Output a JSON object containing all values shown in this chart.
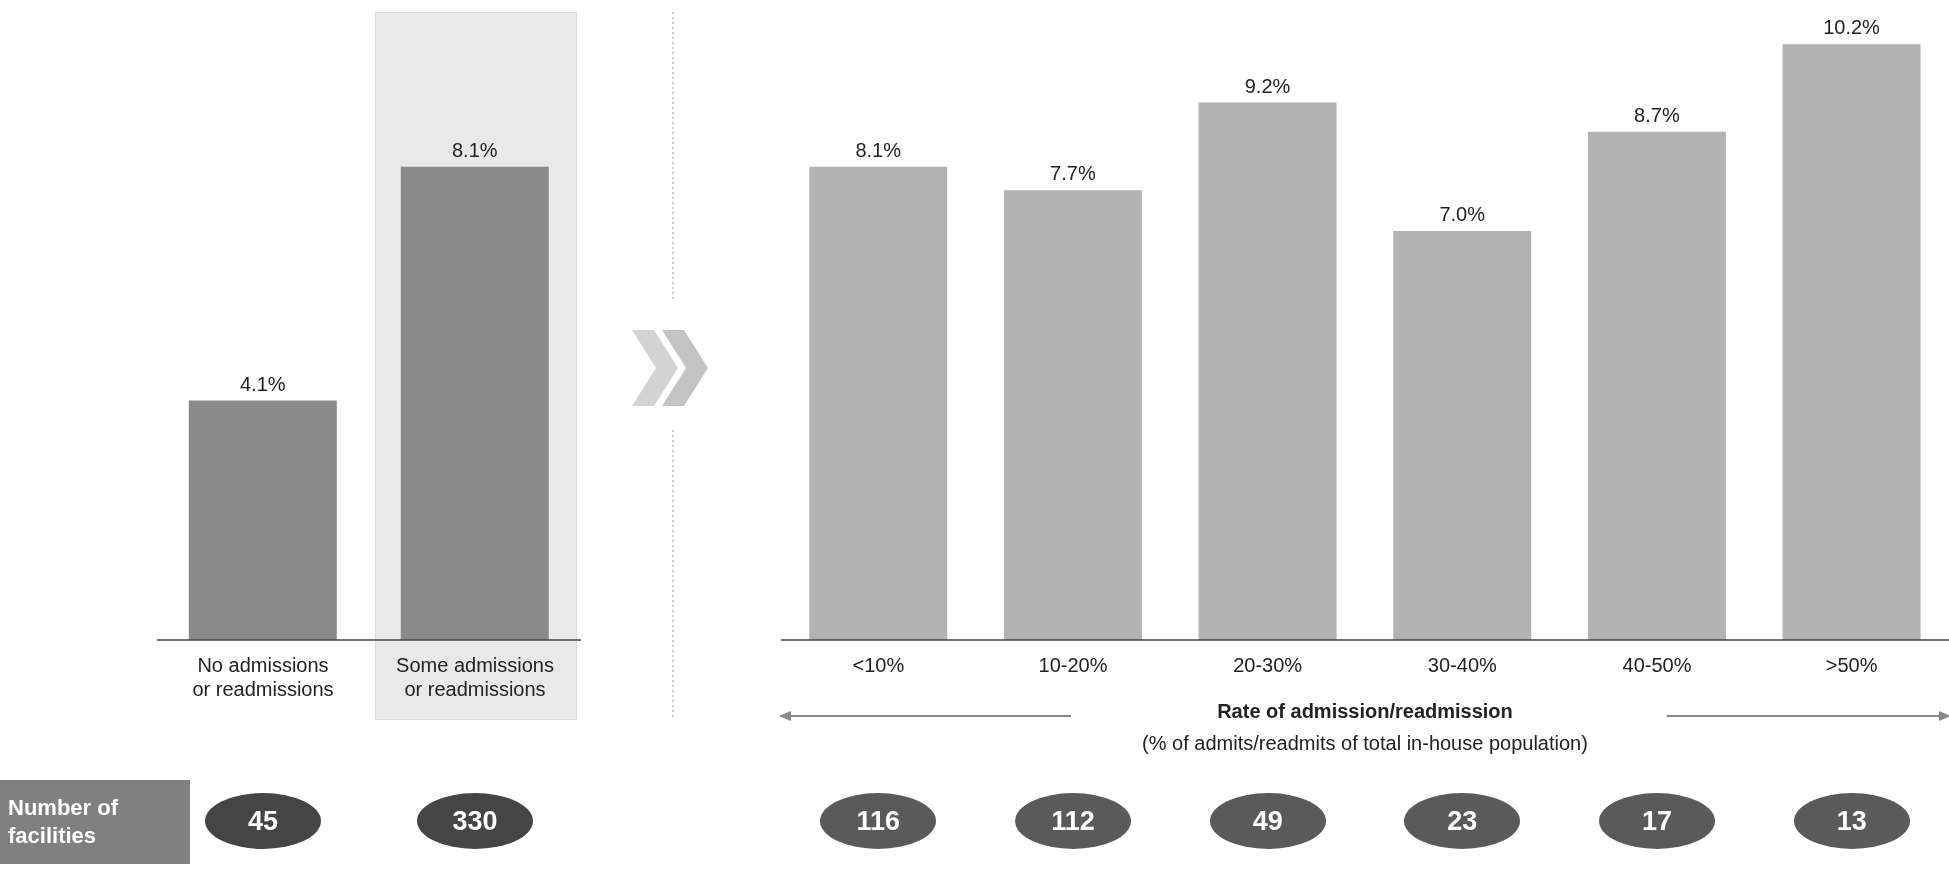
{
  "chart_data": [
    {
      "type": "bar",
      "categories": [
        "No admissions or readmissions",
        "Some admissions or readmissions"
      ],
      "values": [
        4.1,
        8.1
      ],
      "value_labels": [
        "4.1%",
        "8.1%"
      ],
      "color": "#8a8a8a",
      "bands": [
        {
          "axis": "x",
          "from": "Some admissions or readmissions",
          "to": "Some admissions or readmissions",
          "color": "#e9e9e9"
        }
      ],
      "annotations": [
        "Number of facilities",
        "45",
        "330"
      ]
    },
    {
      "type": "bar",
      "categories": [
        "<10%",
        "10-20%",
        "20-30%",
        "30-40%",
        "40-50%",
        ">50%"
      ],
      "values": [
        8.1,
        7.7,
        9.2,
        7.0,
        8.7,
        10.2
      ],
      "value_labels": [
        "8.1%",
        "7.7%",
        "9.2%",
        "7.0%",
        "8.7%",
        "10.2%"
      ],
      "color": "#b3b3b3",
      "xlabel": "Rate of admission/readmission",
      "annotations": [
        "(% of admits/readmits of total in-house population)",
        "116",
        "112",
        "49",
        "23",
        "17",
        "13"
      ]
    }
  ]
}
